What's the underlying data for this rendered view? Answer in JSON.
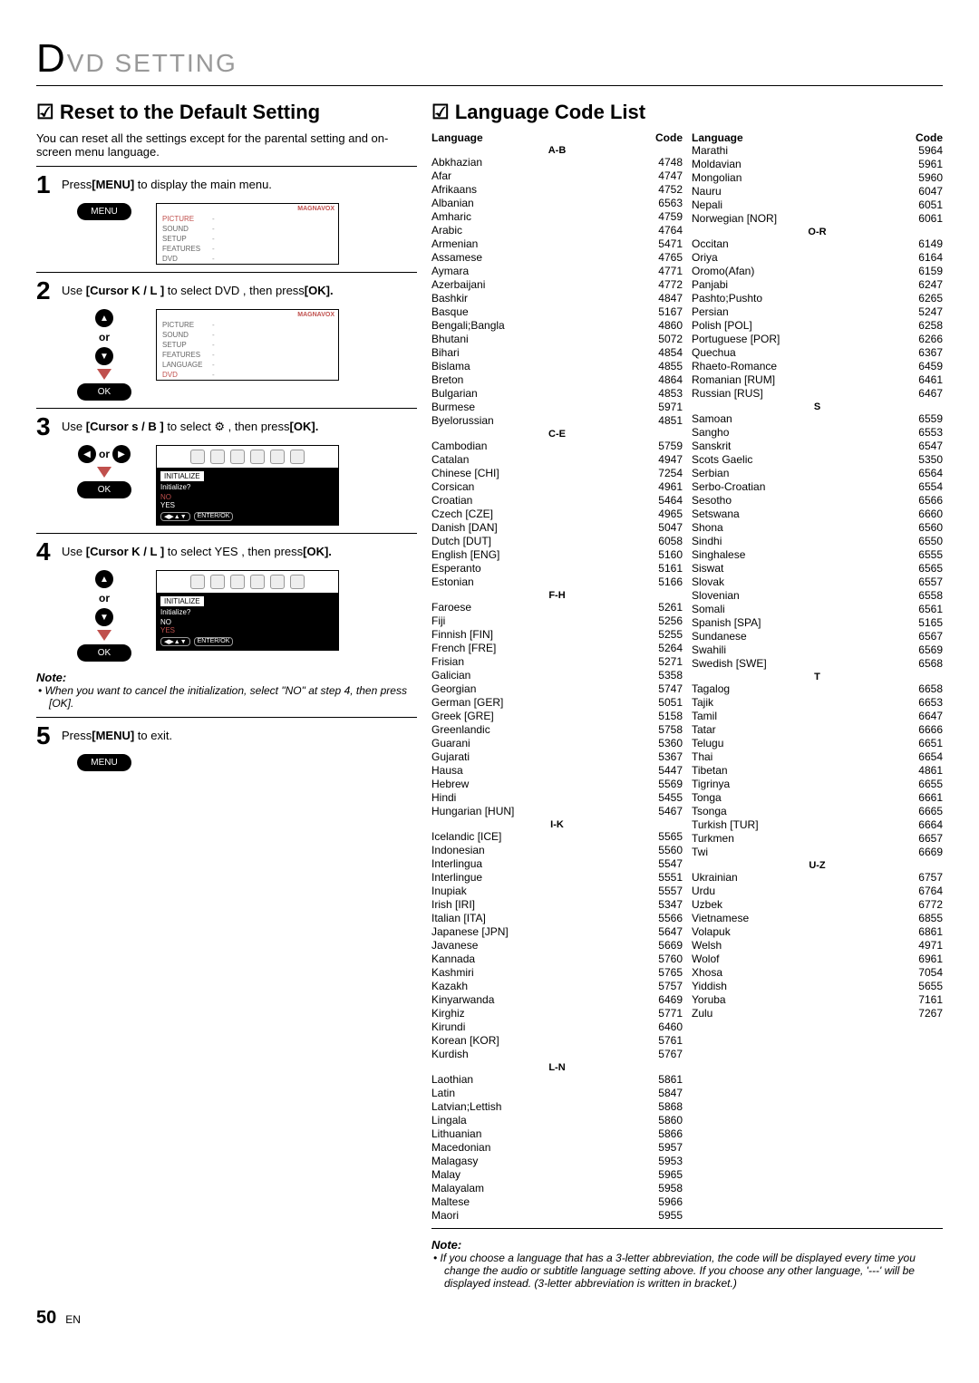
{
  "header": {
    "d": "D",
    "rest": "VD  SETTING"
  },
  "left": {
    "title_reset": "Reset to the Default Setting",
    "intro": "You can reset all the settings except for the parental setting and on-screen menu language.",
    "steps": [
      {
        "n": "1",
        "text_pre": "Press",
        "bold": "[MENU]",
        "text_post": " to display the main menu."
      },
      {
        "n": "2",
        "text_pre": "Use ",
        "bold": "[Cursor K / L ]",
        "text_mid": " to select  DVD , then press",
        "bold2": "[OK]."
      },
      {
        "n": "3",
        "text_pre": "Use ",
        "bold": "[Cursor s  / B ]",
        "text_mid": " to select  ",
        "icon": "⚙",
        "text_mid2": " , then press",
        "bold2": "[OK]."
      },
      {
        "n": "4",
        "text_pre": "Use ",
        "bold": "[Cursor K / L ]",
        "text_mid": " to select  YES , then press",
        "bold2": "[OK]."
      },
      {
        "n": "5",
        "text_pre": "Press",
        "bold": "[MENU]",
        "text_post": " to exit."
      }
    ],
    "remote": {
      "menu": "MENU",
      "ok": "OK",
      "or": "or",
      "enter": "ENTER/OK"
    },
    "osd1": {
      "brand": "MAGNAVOX",
      "items": [
        {
          "lbl": "PICTURE",
          "sel": false,
          "active": true
        },
        {
          "lbl": "SOUND"
        },
        {
          "lbl": "SETUP"
        },
        {
          "lbl": "FEATURES"
        },
        {
          "lbl": "DVD"
        }
      ]
    },
    "osd2": {
      "brand": "MAGNAVOX",
      "items": [
        {
          "lbl": "PICTURE"
        },
        {
          "lbl": "SOUND"
        },
        {
          "lbl": "SETUP"
        },
        {
          "lbl": "FEATURES"
        },
        {
          "lbl": "LANGUAGE"
        },
        {
          "lbl": "DVD",
          "active": true
        }
      ]
    },
    "osd_init": {
      "title": "INITIALIZE",
      "q": "Initialize?",
      "no": "NO",
      "yes": "YES"
    },
    "note_title": "Note:",
    "note_body": "When you want to cancel the initialization, select \"NO\" at step 4, then press [OK]."
  },
  "right": {
    "title": "Language Code List",
    "headers": {
      "lang": "Language",
      "code": "Code"
    },
    "note_title": "Note:",
    "note_body": "If you choose a language that has a 3-letter abbreviation, the code will be displayed every time you change the audio or subtitle language setting above. If you choose any other language, '---' will be displayed instead. (3-letter abbreviation is written in bracket.)",
    "col1": [
      {
        "grp": "A-B"
      },
      {
        "n": "Abkhazian",
        "c": "4748"
      },
      {
        "n": "Afar",
        "c": "4747"
      },
      {
        "n": "Afrikaans",
        "c": "4752"
      },
      {
        "n": "Albanian",
        "c": "6563"
      },
      {
        "n": "Amharic",
        "c": "4759"
      },
      {
        "n": "Arabic",
        "c": "4764"
      },
      {
        "n": "Armenian",
        "c": "5471"
      },
      {
        "n": "Assamese",
        "c": "4765"
      },
      {
        "n": "Aymara",
        "c": "4771"
      },
      {
        "n": "Azerbaijani",
        "c": "4772"
      },
      {
        "n": "Bashkir",
        "c": "4847"
      },
      {
        "n": "Basque",
        "c": "5167"
      },
      {
        "n": "Bengali;Bangla",
        "c": "4860"
      },
      {
        "n": "Bhutani",
        "c": "5072"
      },
      {
        "n": "Bihari",
        "c": "4854"
      },
      {
        "n": "Bislama",
        "c": "4855"
      },
      {
        "n": "Breton",
        "c": "4864"
      },
      {
        "n": "Bulgarian",
        "c": "4853"
      },
      {
        "n": "Burmese",
        "c": "5971"
      },
      {
        "n": "Byelorussian",
        "c": "4851"
      },
      {
        "grp": "C-E"
      },
      {
        "n": "Cambodian",
        "c": "5759"
      },
      {
        "n": "Catalan",
        "c": "4947"
      },
      {
        "n": "Chinese [CHI]",
        "c": "7254"
      },
      {
        "n": "Corsican",
        "c": "4961"
      },
      {
        "n": "Croatian",
        "c": "5464"
      },
      {
        "n": "Czech [CZE]",
        "c": "4965"
      },
      {
        "n": "Danish [DAN]",
        "c": "5047"
      },
      {
        "n": "Dutch [DUT]",
        "c": "6058"
      },
      {
        "n": "English [ENG]",
        "c": "5160"
      },
      {
        "n": "Esperanto",
        "c": "5161"
      },
      {
        "n": "Estonian",
        "c": "5166"
      },
      {
        "grp": "F-H"
      },
      {
        "n": "Faroese",
        "c": "5261"
      },
      {
        "n": "Fiji",
        "c": "5256"
      },
      {
        "n": "Finnish [FIN]",
        "c": "5255"
      },
      {
        "n": "French [FRE]",
        "c": "5264"
      },
      {
        "n": "Frisian",
        "c": "5271"
      },
      {
        "n": "Galician",
        "c": "5358"
      },
      {
        "n": "Georgian",
        "c": "5747"
      },
      {
        "n": "German [GER]",
        "c": "5051"
      },
      {
        "n": "Greek [GRE]",
        "c": "5158"
      },
      {
        "n": "Greenlandic",
        "c": "5758"
      },
      {
        "n": "Guarani",
        "c": "5360"
      },
      {
        "n": "Gujarati",
        "c": "5367"
      },
      {
        "n": "Hausa",
        "c": "5447"
      },
      {
        "n": "Hebrew",
        "c": "5569"
      },
      {
        "n": "Hindi",
        "c": "5455"
      },
      {
        "n": "Hungarian [HUN]",
        "c": "5467"
      },
      {
        "grp": "I-K"
      },
      {
        "n": "Icelandic [ICE]",
        "c": "5565"
      },
      {
        "n": "Indonesian",
        "c": "5560"
      },
      {
        "n": "Interlingua",
        "c": "5547"
      },
      {
        "n": "Interlingue",
        "c": "5551"
      },
      {
        "n": "Inupiak",
        "c": "5557"
      },
      {
        "n": "Irish [IRI]",
        "c": "5347"
      },
      {
        "n": "Italian [ITA]",
        "c": "5566"
      },
      {
        "n": "Japanese [JPN]",
        "c": "5647"
      },
      {
        "n": "Javanese",
        "c": "5669"
      },
      {
        "n": "Kannada",
        "c": "5760"
      },
      {
        "n": "Kashmiri",
        "c": "5765"
      },
      {
        "n": "Kazakh",
        "c": "5757"
      },
      {
        "n": "Kinyarwanda",
        "c": "6469"
      },
      {
        "n": "Kirghiz",
        "c": "5771"
      },
      {
        "n": "Kirundi",
        "c": "6460"
      },
      {
        "n": "Korean [KOR]",
        "c": "5761"
      },
      {
        "n": "Kurdish",
        "c": "5767"
      },
      {
        "grp": "L-N"
      },
      {
        "n": "Laothian",
        "c": "5861"
      },
      {
        "n": "Latin",
        "c": "5847"
      },
      {
        "n": "Latvian;Lettish",
        "c": "5868"
      },
      {
        "n": "Lingala",
        "c": "5860"
      },
      {
        "n": "Lithuanian",
        "c": "5866"
      },
      {
        "n": "Macedonian",
        "c": "5957"
      },
      {
        "n": "Malagasy",
        "c": "5953"
      },
      {
        "n": "Malay",
        "c": "5965"
      },
      {
        "n": "Malayalam",
        "c": "5958"
      },
      {
        "n": "Maltese",
        "c": "5966"
      },
      {
        "n": "Maori",
        "c": "5955"
      }
    ],
    "col2": [
      {
        "n": "Marathi",
        "c": "5964"
      },
      {
        "n": "Moldavian",
        "c": "5961"
      },
      {
        "n": "Mongolian",
        "c": "5960"
      },
      {
        "n": "Nauru",
        "c": "6047"
      },
      {
        "n": "Nepali",
        "c": "6051"
      },
      {
        "n": "Norwegian [NOR]",
        "c": "6061"
      },
      {
        "grp": "O-R"
      },
      {
        "n": "Occitan",
        "c": "6149"
      },
      {
        "n": "Oriya",
        "c": "6164"
      },
      {
        "n": "Oromo(Afan)",
        "c": "6159"
      },
      {
        "n": "Panjabi",
        "c": "6247"
      },
      {
        "n": "Pashto;Pushto",
        "c": "6265"
      },
      {
        "n": "Persian",
        "c": "5247"
      },
      {
        "n": "Polish [POL]",
        "c": "6258"
      },
      {
        "n": "Portuguese [POR]",
        "c": "6266"
      },
      {
        "n": "Quechua",
        "c": "6367"
      },
      {
        "n": "Rhaeto-Romance",
        "c": "6459"
      },
      {
        "n": "Romanian [RUM]",
        "c": "6461"
      },
      {
        "n": "Russian [RUS]",
        "c": "6467"
      },
      {
        "grp": "S"
      },
      {
        "n": "Samoan",
        "c": "6559"
      },
      {
        "n": "Sangho",
        "c": "6553"
      },
      {
        "n": "Sanskrit",
        "c": "6547"
      },
      {
        "n": "Scots Gaelic",
        "c": "5350"
      },
      {
        "n": "Serbian",
        "c": "6564"
      },
      {
        "n": "Serbo-Croatian",
        "c": "6554"
      },
      {
        "n": "Sesotho",
        "c": "6566"
      },
      {
        "n": "Setswana",
        "c": "6660"
      },
      {
        "n": "Shona",
        "c": "6560"
      },
      {
        "n": "Sindhi",
        "c": "6550"
      },
      {
        "n": "Singhalese",
        "c": "6555"
      },
      {
        "n": "Siswat",
        "c": "6565"
      },
      {
        "n": "Slovak",
        "c": "6557"
      },
      {
        "n": "Slovenian",
        "c": "6558"
      },
      {
        "n": "Somali",
        "c": "6561"
      },
      {
        "n": "Spanish [SPA]",
        "c": "5165"
      },
      {
        "n": "Sundanese",
        "c": "6567"
      },
      {
        "n": "Swahili",
        "c": "6569"
      },
      {
        "n": "Swedish [SWE]",
        "c": "6568"
      },
      {
        "grp": "T"
      },
      {
        "n": "Tagalog",
        "c": "6658"
      },
      {
        "n": "Tajik",
        "c": "6653"
      },
      {
        "n": "Tamil",
        "c": "6647"
      },
      {
        "n": "Tatar",
        "c": "6666"
      },
      {
        "n": "Telugu",
        "c": "6651"
      },
      {
        "n": "Thai",
        "c": "6654"
      },
      {
        "n": "Tibetan",
        "c": "4861"
      },
      {
        "n": "Tigrinya",
        "c": "6655"
      },
      {
        "n": "Tonga",
        "c": "6661"
      },
      {
        "n": "Tsonga",
        "c": "6665"
      },
      {
        "n": "Turkish [TUR]",
        "c": "6664"
      },
      {
        "n": "Turkmen",
        "c": "6657"
      },
      {
        "n": "Twi",
        "c": "6669"
      },
      {
        "grp": "U-Z"
      },
      {
        "n": "Ukrainian",
        "c": "6757"
      },
      {
        "n": "Urdu",
        "c": "6764"
      },
      {
        "n": "Uzbek",
        "c": "6772"
      },
      {
        "n": "Vietnamese",
        "c": "6855"
      },
      {
        "n": "Volapuk",
        "c": "6861"
      },
      {
        "n": "Welsh",
        "c": "4971"
      },
      {
        "n": "Wolof",
        "c": "6961"
      },
      {
        "n": "Xhosa",
        "c": "7054"
      },
      {
        "n": "Yiddish",
        "c": "5655"
      },
      {
        "n": "Yoruba",
        "c": "7161"
      },
      {
        "n": "Zulu",
        "c": "7267"
      }
    ]
  },
  "page": {
    "num": "50",
    "en": "EN"
  }
}
